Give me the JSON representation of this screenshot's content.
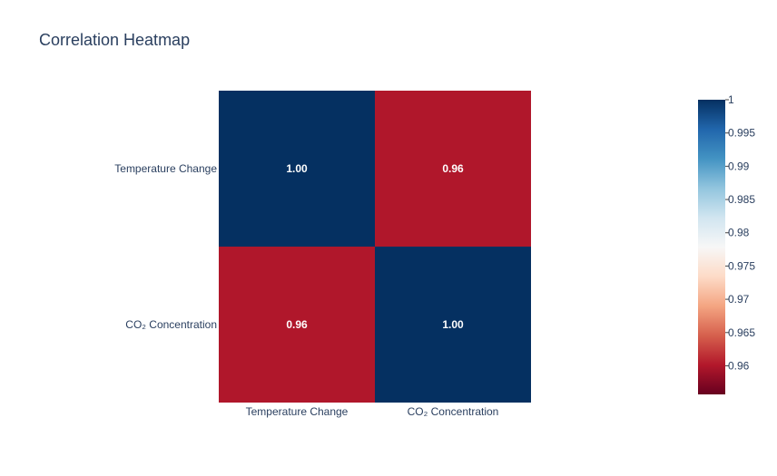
{
  "chart_data": {
    "type": "heatmap",
    "title": "Correlation Heatmap",
    "x_categories": [
      "Temperature Change",
      "CO₂ Concentration"
    ],
    "y_categories": [
      "Temperature Change",
      "CO₂ Concentration"
    ],
    "z": [
      [
        1.0,
        0.96
      ],
      [
        0.96,
        1.0
      ]
    ],
    "cell_labels": [
      [
        "1.00",
        "0.96"
      ],
      [
        "0.96",
        "1.00"
      ]
    ],
    "colorscale": "RdBu",
    "zmin": 0.9557,
    "zmax": 1.0,
    "colorbar_ticks": [
      "1",
      "0.995",
      "0.99",
      "0.985",
      "0.98",
      "0.975",
      "0.97",
      "0.965",
      "0.96"
    ],
    "colors": {
      "low": "#67001f",
      "high": "#053061",
      "text": "#2a3f5f"
    }
  }
}
